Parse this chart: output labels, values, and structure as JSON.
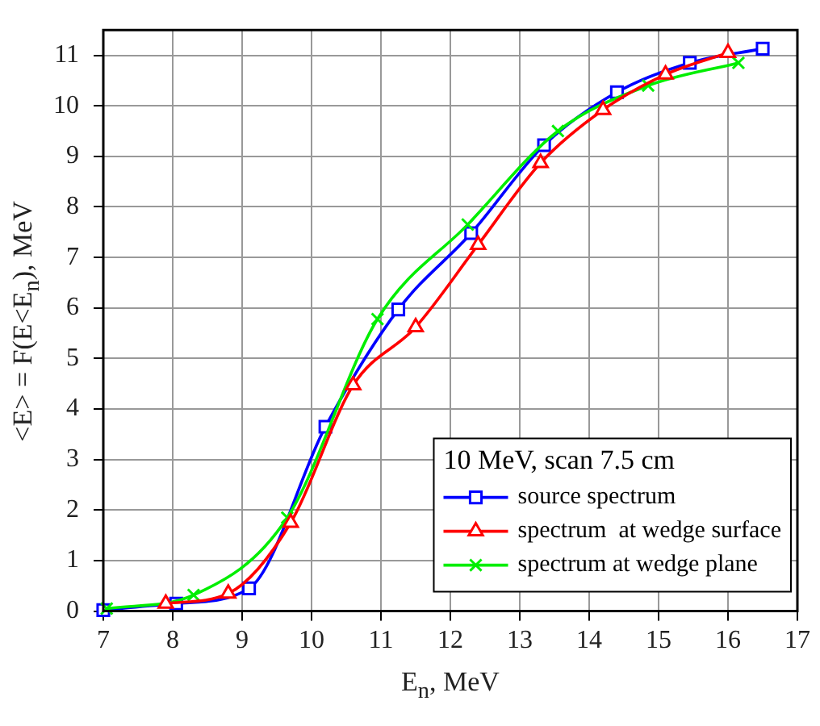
{
  "chart_data": {
    "type": "line",
    "xlabel": "E$_{n}$, MeV",
    "ylabel": "<E> = F(E<E$_{n}$), MeV",
    "legend_title": "10 MeV, scan 7.5 cm",
    "xlim": [
      7,
      17
    ],
    "xticks": [
      7,
      8,
      9,
      10,
      11,
      12,
      13,
      14,
      15,
      16,
      17
    ],
    "ylim": [
      0,
      11.5
    ],
    "yticks": [
      0,
      1,
      2,
      3,
      4,
      5,
      6,
      7,
      8,
      9,
      10,
      11
    ],
    "grid": true,
    "legend": "bottom right",
    "series": [
      {
        "name": "source spectrum",
        "color": "#0000ff",
        "marker": "square",
        "x": [
          7.0,
          8.05,
          9.1,
          10.2,
          11.25,
          12.3,
          13.35,
          14.4,
          15.45,
          16.5
        ],
        "values": [
          0.02,
          0.15,
          0.45,
          3.65,
          5.97,
          7.48,
          9.22,
          10.27,
          10.85,
          11.13
        ]
      },
      {
        "name": "spectrum  at wedge surface",
        "color": "#ff0000",
        "marker": "triangle",
        "x": [
          7.9,
          8.8,
          9.7,
          10.6,
          11.5,
          12.4,
          13.3,
          14.2,
          15.1,
          16.0
        ],
        "values": [
          0.15,
          0.35,
          1.75,
          4.47,
          5.62,
          7.25,
          8.87,
          9.92,
          10.62,
          11.05
        ]
      },
      {
        "name": "spectrum at wedge plane",
        "color": "#00ee00",
        "marker": "cross",
        "x": [
          7.05,
          8.3,
          9.65,
          10.95,
          12.25,
          13.55,
          14.85,
          16.15
        ],
        "values": [
          0.05,
          0.32,
          1.85,
          5.78,
          7.65,
          9.5,
          10.4,
          10.85
        ]
      }
    ]
  }
}
